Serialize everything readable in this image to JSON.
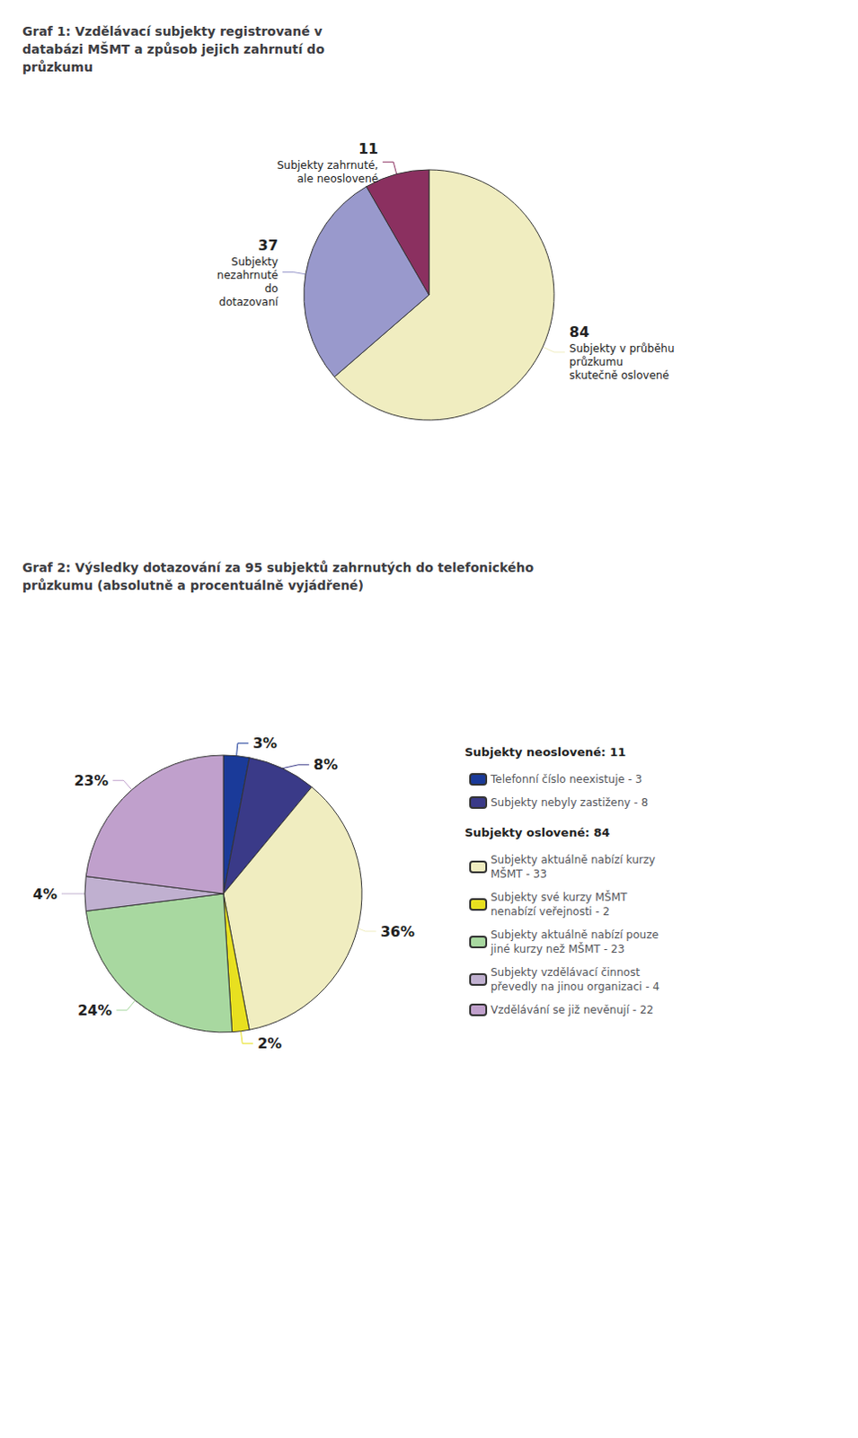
{
  "chart_data": [
    {
      "type": "pie",
      "title": "Graf 1: Vzdělávací subjekty registrované v\ndatabázi MŠMT a způsob jejich zahrnutí do\nprůzkumu",
      "categories": [
        "Subjekty v průběhu\nprůzkumu\nskutečně oslovené",
        "Subjekty\nnezahrnuté\ndo\ndotazovaní",
        "Subjekty zahrnuté,\nale neoslovené"
      ],
      "values": [
        84,
        37,
        11
      ],
      "colors": [
        "#f0edc0",
        "#9999cc",
        "#8b3060"
      ],
      "data_labels": true
    },
    {
      "type": "pie",
      "title": "Graf 2: Výsledky dotazování za 95 subjektů zahrnutých do telefonického\nprůzkumu (absolutně a procentuálně vyjádřené)",
      "categories": [
        "Telefonní číslo neexistuje - 3",
        "Subjekty nebyly zastiženy - 8",
        "Subjekty aktuálně nabízí kurzy\nMŠMT - 33",
        "Subjekty své kurzy MŠMT\nnenabízí veřejnosti - 2",
        "Subjekty aktuálně nabízí pouze\njiné kurzy než MŠMT - 23",
        "Subjekty vzdělávací činnost\npřevedly na jinou organizaci - 4",
        "Vzdělávání se již nevěnují - 22"
      ],
      "values": [
        3,
        8,
        36,
        2,
        24,
        4,
        23
      ],
      "value_labels": [
        "3%",
        "8%",
        "36%",
        "2%",
        "24%",
        "4%",
        "23%"
      ],
      "colors": [
        "#1a3a99",
        "#3a3a88",
        "#f0edc0",
        "#e8e020",
        "#a8d8a0",
        "#c0b0d0",
        "#c0a0cc"
      ],
      "data_labels": true,
      "legend": "right",
      "annotations": [
        {
          "text": "Subjekty neoslovené: 11",
          "categories": [
            "Telefonní číslo neexistuje - 3",
            "Subjekty nebyly zastiženy - 8"
          ]
        },
        {
          "text": "Subjekty oslovené: 84",
          "categories": [
            "Subjekty aktuálně nabízí kurzy\nMŠMT - 33",
            "Subjekty své kurzy MŠMT\nnenabízí veřejnosti - 2",
            "Subjekty aktuálně nabízí pouze\njiné kurzy než MŠMT - 23",
            "Subjekty vzdělávací činnost\npřevedly na jinou organizaci - 4",
            "Vzdělávání se již nevěnují - 22"
          ]
        }
      ]
    }
  ]
}
